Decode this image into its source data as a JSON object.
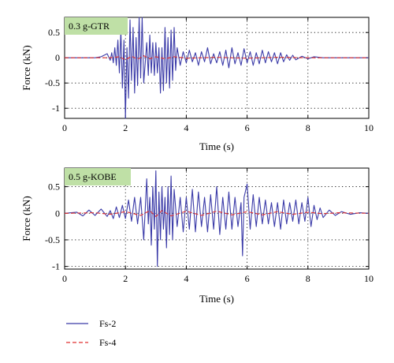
{
  "chart_data": [
    {
      "type": "line",
      "annotation": "0.3 g-GTR",
      "annotation_bg": "#bfe0a6",
      "xlabel": "Time (s)",
      "ylabel": "Force (kN)",
      "xlim": [
        0,
        10
      ],
      "ylim": [
        -1.2,
        0.8
      ],
      "xticks": [
        0,
        2,
        4,
        6,
        8,
        10
      ],
      "yticks": [
        -1,
        -0.5,
        0,
        0.5
      ],
      "grid": true,
      "series": [
        {
          "key": "fs2",
          "color": "#3b3ba8",
          "style": "solid",
          "points": [
            [
              0,
              0
            ],
            [
              1.0,
              0
            ],
            [
              1.2,
              0.02
            ],
            [
              1.4,
              0.08
            ],
            [
              1.5,
              -0.05
            ],
            [
              1.55,
              0.1
            ],
            [
              1.6,
              -0.1
            ],
            [
              1.65,
              0.2
            ],
            [
              1.7,
              -0.15
            ],
            [
              1.75,
              0.35
            ],
            [
              1.8,
              -0.3
            ],
            [
              1.85,
              0.55
            ],
            [
              1.9,
              -0.6
            ],
            [
              1.95,
              0.35
            ],
            [
              2.0,
              -1.2
            ],
            [
              2.05,
              0.2
            ],
            [
              2.1,
              -0.8
            ],
            [
              2.15,
              0.75
            ],
            [
              2.2,
              -0.45
            ],
            [
              2.25,
              0.6
            ],
            [
              2.3,
              -0.7
            ],
            [
              2.35,
              0.4
            ],
            [
              2.4,
              -0.55
            ],
            [
              2.45,
              0.8
            ],
            [
              2.5,
              -0.4
            ],
            [
              2.55,
              0.8
            ],
            [
              2.6,
              -0.5
            ],
            [
              2.7,
              0.3
            ],
            [
              2.75,
              -0.35
            ],
            [
              2.8,
              0.45
            ],
            [
              2.85,
              -0.3
            ],
            [
              2.9,
              0.3
            ],
            [
              2.95,
              -0.35
            ],
            [
              3.0,
              0.3
            ],
            [
              3.05,
              -0.3
            ],
            [
              3.1,
              0.2
            ],
            [
              3.15,
              -0.7
            ],
            [
              3.2,
              0.2
            ],
            [
              3.25,
              -0.65
            ],
            [
              3.3,
              0.6
            ],
            [
              3.35,
              -0.5
            ],
            [
              3.4,
              0.4
            ],
            [
              3.45,
              -0.6
            ],
            [
              3.5,
              0.55
            ],
            [
              3.55,
              -0.45
            ],
            [
              3.6,
              0.6
            ],
            [
              3.65,
              -0.25
            ],
            [
              3.7,
              0.2
            ],
            [
              3.8,
              -0.15
            ],
            [
              3.9,
              0.12
            ],
            [
              4.0,
              -0.1
            ],
            [
              4.1,
              0.15
            ],
            [
              4.2,
              -0.08
            ],
            [
              4.3,
              0.1
            ],
            [
              4.4,
              -0.15
            ],
            [
              4.5,
              0.12
            ],
            [
              4.6,
              -0.08
            ],
            [
              4.7,
              0.2
            ],
            [
              4.8,
              -0.12
            ],
            [
              4.9,
              0.08
            ],
            [
              5.0,
              -0.1
            ],
            [
              5.1,
              0.12
            ],
            [
              5.2,
              -0.15
            ],
            [
              5.3,
              0.15
            ],
            [
              5.4,
              -0.2
            ],
            [
              5.5,
              0.2
            ],
            [
              5.6,
              -0.12
            ],
            [
              5.7,
              0.1
            ],
            [
              5.8,
              -0.15
            ],
            [
              5.9,
              0.18
            ],
            [
              6.0,
              -0.1
            ],
            [
              6.1,
              0.12
            ],
            [
              6.2,
              -0.15
            ],
            [
              6.3,
              0.1
            ],
            [
              6.4,
              -0.12
            ],
            [
              6.5,
              0.15
            ],
            [
              6.6,
              -0.1
            ],
            [
              6.7,
              0.12
            ],
            [
              6.8,
              -0.08
            ],
            [
              6.9,
              0.1
            ],
            [
              7.0,
              -0.12
            ],
            [
              7.1,
              0.1
            ],
            [
              7.2,
              -0.08
            ],
            [
              7.3,
              0.06
            ],
            [
              7.4,
              -0.05
            ],
            [
              7.5,
              0.05
            ],
            [
              7.6,
              -0.04
            ],
            [
              7.8,
              0.03
            ],
            [
              8.0,
              -0.02
            ],
            [
              8.2,
              0.02
            ],
            [
              8.5,
              0
            ],
            [
              10,
              0
            ]
          ]
        },
        {
          "key": "fs4",
          "color": "#e03030",
          "style": "dashed",
          "points": [
            [
              0,
              0
            ],
            [
              1.5,
              0
            ],
            [
              1.8,
              0.02
            ],
            [
              2.0,
              -0.04
            ],
            [
              2.2,
              0.03
            ],
            [
              2.4,
              -0.03
            ],
            [
              2.6,
              0.04
            ],
            [
              2.8,
              -0.02
            ],
            [
              3.0,
              0.02
            ],
            [
              3.3,
              -0.02
            ],
            [
              3.6,
              0.02
            ],
            [
              4.0,
              -0.01
            ],
            [
              5.0,
              0.01
            ],
            [
              6.0,
              -0.01
            ],
            [
              7.0,
              0.01
            ],
            [
              8.0,
              0
            ],
            [
              10,
              0
            ]
          ]
        }
      ]
    },
    {
      "type": "line",
      "annotation": "0.5 g-KOBE",
      "annotation_bg": "#bfe0a6",
      "xlabel": "Time (s)",
      "ylabel": "Force (kN)",
      "xlim": [
        0,
        10
      ],
      "ylim": [
        -1.05,
        0.85
      ],
      "xticks": [
        0,
        2,
        4,
        6,
        8,
        10
      ],
      "yticks": [
        -1,
        -0.5,
        0,
        0.5
      ],
      "grid": true,
      "series": [
        {
          "key": "fs2",
          "color": "#3b3ba8",
          "style": "solid",
          "points": [
            [
              0,
              0
            ],
            [
              0.4,
              0.02
            ],
            [
              0.6,
              -0.05
            ],
            [
              0.8,
              0.06
            ],
            [
              1.0,
              -0.04
            ],
            [
              1.2,
              0.08
            ],
            [
              1.4,
              -0.06
            ],
            [
              1.5,
              0.05
            ],
            [
              1.6,
              -0.1
            ],
            [
              1.7,
              0.12
            ],
            [
              1.8,
              -0.08
            ],
            [
              1.9,
              0.15
            ],
            [
              2.0,
              -0.1
            ],
            [
              2.1,
              0.25
            ],
            [
              2.2,
              -0.15
            ],
            [
              2.3,
              0.3
            ],
            [
              2.4,
              -0.2
            ],
            [
              2.5,
              0.3
            ],
            [
              2.6,
              -0.5
            ],
            [
              2.7,
              0.65
            ],
            [
              2.75,
              -0.2
            ],
            [
              2.8,
              0.3
            ],
            [
              2.85,
              -0.6
            ],
            [
              2.9,
              0.5
            ],
            [
              2.95,
              -0.3
            ],
            [
              3.0,
              0.8
            ],
            [
              3.05,
              -1.0
            ],
            [
              3.1,
              0.4
            ],
            [
              3.15,
              -0.5
            ],
            [
              3.2,
              0.5
            ],
            [
              3.25,
              -0.3
            ],
            [
              3.3,
              0.3
            ],
            [
              3.35,
              -0.65
            ],
            [
              3.4,
              0.5
            ],
            [
              3.45,
              -0.4
            ],
            [
              3.5,
              0.7
            ],
            [
              3.55,
              -0.5
            ],
            [
              3.6,
              0.45
            ],
            [
              3.7,
              -0.25
            ],
            [
              3.8,
              0.3
            ],
            [
              3.9,
              -0.35
            ],
            [
              4.0,
              0.3
            ],
            [
              4.1,
              -0.3
            ],
            [
              4.2,
              0.45
            ],
            [
              4.3,
              -0.35
            ],
            [
              4.4,
              0.4
            ],
            [
              4.5,
              -0.25
            ],
            [
              4.6,
              0.3
            ],
            [
              4.7,
              -0.35
            ],
            [
              4.8,
              0.35
            ],
            [
              4.9,
              -0.3
            ],
            [
              5.0,
              0.5
            ],
            [
              5.1,
              -0.4
            ],
            [
              5.2,
              0.3
            ],
            [
              5.3,
              -0.3
            ],
            [
              5.4,
              0.4
            ],
            [
              5.5,
              -0.3
            ],
            [
              5.6,
              0.3
            ],
            [
              5.7,
              -0.25
            ],
            [
              5.8,
              0.2
            ],
            [
              5.85,
              -0.8
            ],
            [
              5.9,
              0.3
            ],
            [
              6.0,
              0.55
            ],
            [
              6.1,
              -0.3
            ],
            [
              6.2,
              0.35
            ],
            [
              6.3,
              -0.25
            ],
            [
              6.4,
              0.3
            ],
            [
              6.5,
              -0.2
            ],
            [
              6.6,
              0.25
            ],
            [
              6.7,
              -0.2
            ],
            [
              6.8,
              0.2
            ],
            [
              6.9,
              -0.25
            ],
            [
              7.0,
              0.2
            ],
            [
              7.1,
              -0.3
            ],
            [
              7.2,
              0.25
            ],
            [
              7.3,
              -0.2
            ],
            [
              7.4,
              0.2
            ],
            [
              7.5,
              -0.15
            ],
            [
              7.6,
              0.25
            ],
            [
              7.7,
              -0.2
            ],
            [
              7.8,
              0.2
            ],
            [
              7.9,
              -0.15
            ],
            [
              8.0,
              0.3
            ],
            [
              8.1,
              -0.25
            ],
            [
              8.2,
              0.15
            ],
            [
              8.3,
              -0.12
            ],
            [
              8.4,
              0.1
            ],
            [
              8.5,
              -0.08
            ],
            [
              8.7,
              0.06
            ],
            [
              8.9,
              -0.04
            ],
            [
              9.1,
              0.03
            ],
            [
              9.4,
              -0.02
            ],
            [
              9.7,
              0.01
            ],
            [
              10,
              0
            ]
          ]
        },
        {
          "key": "fs4",
          "color": "#e03030",
          "style": "dashed",
          "points": [
            [
              0,
              0
            ],
            [
              1.0,
              0.01
            ],
            [
              1.5,
              -0.02
            ],
            [
              2.0,
              0.03
            ],
            [
              2.5,
              -0.04
            ],
            [
              2.8,
              0.05
            ],
            [
              3.0,
              -0.06
            ],
            [
              3.2,
              0.05
            ],
            [
              3.5,
              -0.05
            ],
            [
              4.0,
              0.04
            ],
            [
              4.5,
              -0.04
            ],
            [
              5.0,
              0.04
            ],
            [
              5.5,
              -0.03
            ],
            [
              6.0,
              0.03
            ],
            [
              6.5,
              -0.03
            ],
            [
              7.0,
              0.03
            ],
            [
              7.5,
              -0.02
            ],
            [
              8.0,
              0.02
            ],
            [
              8.5,
              -0.01
            ],
            [
              9.0,
              0.01
            ],
            [
              10,
              0
            ]
          ]
        }
      ]
    }
  ],
  "legend": [
    {
      "key": "fs2",
      "label": "Fs-2",
      "color": "#3b3ba8",
      "style": "solid"
    },
    {
      "key": "fs4",
      "label": "Fs-4",
      "color": "#e03030",
      "style": "dashed"
    }
  ]
}
